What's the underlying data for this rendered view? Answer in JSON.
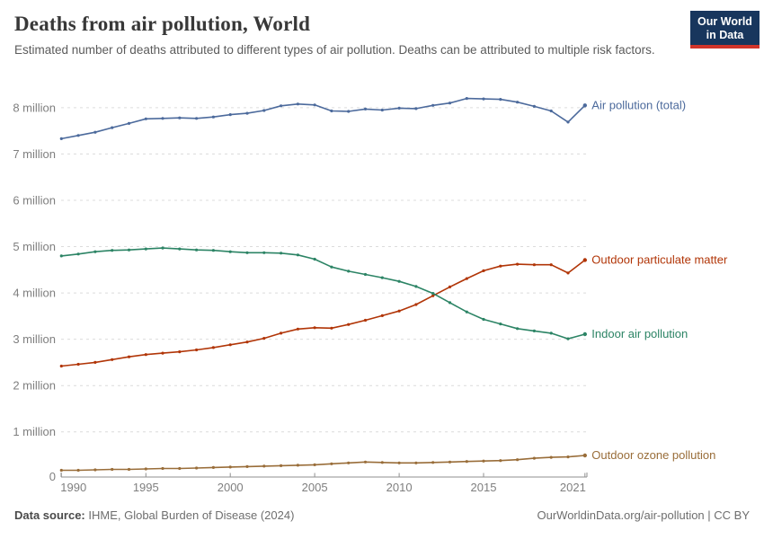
{
  "header": {
    "title": "Deaths from air pollution, World",
    "subtitle": "Estimated number of deaths attributed to different types of air pollution. Deaths can be attributed to multiple risk factors.",
    "logo": {
      "line1": "Our World",
      "line2": "in Data",
      "bg_color": "#18365d",
      "accent_color": "#d1342a"
    }
  },
  "chart_data": {
    "type": "line",
    "title": "Deaths from air pollution, World",
    "unit": "deaths (millions)",
    "xlabel": "",
    "ylabel": "",
    "x": [
      1990,
      1991,
      1992,
      1993,
      1994,
      1995,
      1996,
      1997,
      1998,
      1999,
      2000,
      2001,
      2002,
      2003,
      2004,
      2005,
      2006,
      2007,
      2008,
      2009,
      2010,
      2011,
      2012,
      2013,
      2014,
      2015,
      2016,
      2017,
      2018,
      2019,
      2020,
      2021
    ],
    "x_ticks": [
      1990,
      1995,
      2000,
      2005,
      2010,
      2015,
      2021
    ],
    "y_ticks": [
      0,
      1,
      2,
      3,
      4,
      5,
      6,
      7,
      8
    ],
    "y_tick_suffix": " million",
    "ylim": [
      0,
      8.6
    ],
    "grid": "horizontal-dashed",
    "legend_position": "right-end-of-line labels",
    "series": [
      {
        "name": "Air pollution (total)",
        "color": "#4C6A9C",
        "values": [
          7.33,
          7.4,
          7.47,
          7.57,
          7.66,
          7.76,
          7.77,
          7.78,
          7.77,
          7.8,
          7.85,
          7.88,
          7.94,
          8.04,
          8.08,
          8.06,
          7.93,
          7.92,
          7.97,
          7.95,
          7.99,
          7.98,
          8.05,
          8.1,
          8.2,
          8.19,
          8.18,
          8.12,
          8.03,
          7.93,
          7.69,
          8.05
        ]
      },
      {
        "name": "Outdoor particulate matter",
        "color": "#B13507",
        "values": [
          2.42,
          2.46,
          2.5,
          2.56,
          2.62,
          2.67,
          2.7,
          2.73,
          2.77,
          2.82,
          2.88,
          2.94,
          3.02,
          3.13,
          3.22,
          3.25,
          3.24,
          3.32,
          3.41,
          3.51,
          3.61,
          3.75,
          3.94,
          4.13,
          4.31,
          4.48,
          4.58,
          4.62,
          4.61,
          4.61,
          4.43,
          4.71
        ]
      },
      {
        "name": "Indoor air pollution",
        "color": "#2C8465",
        "values": [
          4.8,
          4.84,
          4.89,
          4.92,
          4.93,
          4.95,
          4.97,
          4.95,
          4.93,
          4.92,
          4.89,
          4.87,
          4.87,
          4.86,
          4.82,
          4.73,
          4.56,
          4.47,
          4.4,
          4.33,
          4.25,
          4.14,
          3.99,
          3.79,
          3.59,
          3.43,
          3.33,
          3.23,
          3.18,
          3.13,
          3.01,
          3.11
        ]
      },
      {
        "name": "Outdoor ozone pollution",
        "color": "#996D39",
        "values": [
          0.17,
          0.17,
          0.18,
          0.19,
          0.19,
          0.2,
          0.21,
          0.21,
          0.22,
          0.23,
          0.24,
          0.25,
          0.26,
          0.27,
          0.28,
          0.29,
          0.31,
          0.33,
          0.35,
          0.34,
          0.33,
          0.33,
          0.34,
          0.35,
          0.36,
          0.37,
          0.38,
          0.4,
          0.43,
          0.45,
          0.46,
          0.49
        ]
      }
    ]
  },
  "footer": {
    "source_label": "Data source:",
    "source_text": "IHME, Global Burden of Disease (2024)",
    "link_text": "OurWorldinData.org/air-pollution | CC BY"
  }
}
